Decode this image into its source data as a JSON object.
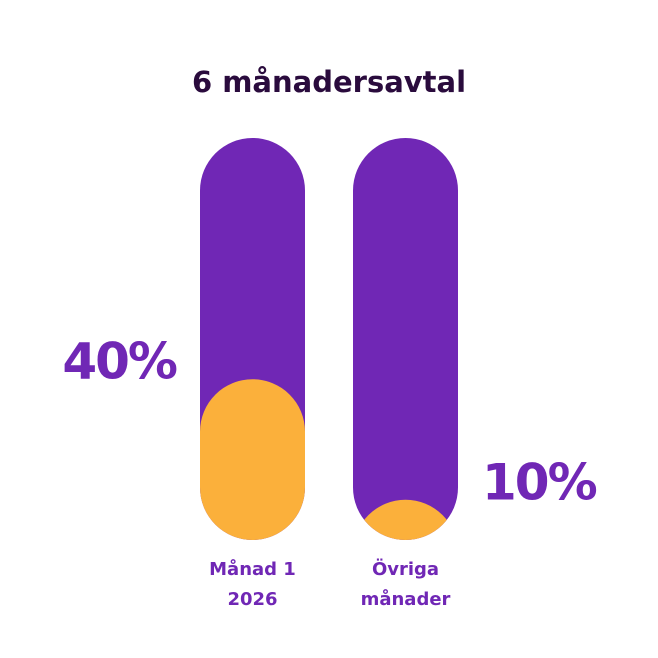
{
  "chart_data": {
    "type": "pill-bar",
    "title": "6 månadersavtal",
    "categories": [
      [
        "Månad 1",
        "2026"
      ],
      [
        "Övriga",
        "månader"
      ]
    ],
    "values": [
      40,
      10
    ],
    "value_labels": [
      "40%",
      "10%"
    ],
    "color": "#fbb03b",
    "track_color": "#7027b5",
    "ylim": [
      0,
      100
    ]
  }
}
